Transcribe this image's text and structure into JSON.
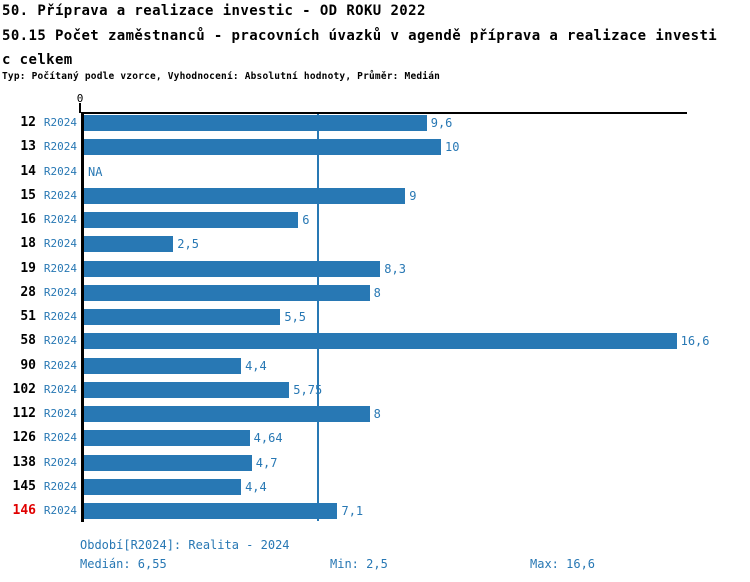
{
  "header": {
    "title_line1": "50. Příprava a realizace investic - OD ROKU 2022",
    "title_line2": "50.15 Počet zaměstnanců - pracovních úvazků v agendě příprava a realizace investi",
    "title_line3": "c celkem",
    "subtitle": "Typ: Počítaný podle vzorce, Vyhodnocení: Absolutní hodnoty, Průměr: Medián"
  },
  "chart_data": {
    "type": "bar",
    "orientation": "horizontal",
    "axis_zero_label": "0",
    "period_label": "R2024",
    "xlim": [
      0,
      16.9
    ],
    "median": 6.55,
    "bar_color": "#2878b4",
    "text_blue": "#2878b4",
    "highlight_color": "#e00000",
    "rows": [
      {
        "id": "12",
        "value": 9.6,
        "label": "9,6"
      },
      {
        "id": "13",
        "value": 10,
        "label": "10"
      },
      {
        "id": "14",
        "value": null,
        "label": "NA"
      },
      {
        "id": "15",
        "value": 9,
        "label": "9"
      },
      {
        "id": "16",
        "value": 6,
        "label": "6"
      },
      {
        "id": "18",
        "value": 2.5,
        "label": "2,5"
      },
      {
        "id": "19",
        "value": 8.3,
        "label": "8,3"
      },
      {
        "id": "28",
        "value": 8,
        "label": "8"
      },
      {
        "id": "51",
        "value": 5.5,
        "label": "5,5"
      },
      {
        "id": "58",
        "value": 16.6,
        "label": "16,6"
      },
      {
        "id": "90",
        "value": 4.4,
        "label": "4,4"
      },
      {
        "id": "102",
        "value": 5.75,
        "label": "5,75"
      },
      {
        "id": "112",
        "value": 8,
        "label": "8"
      },
      {
        "id": "126",
        "value": 4.64,
        "label": "4,64"
      },
      {
        "id": "138",
        "value": 4.7,
        "label": "4,7"
      },
      {
        "id": "145",
        "value": 4.4,
        "label": "4,4"
      },
      {
        "id": "146",
        "value": 7.1,
        "label": "7,1",
        "highlight": true
      }
    ]
  },
  "footer": {
    "period": "Období[R2024]: Realita - 2024",
    "median": "Medián: 6,55",
    "min": "Min: 2,5",
    "max": "Max: 16,6"
  }
}
